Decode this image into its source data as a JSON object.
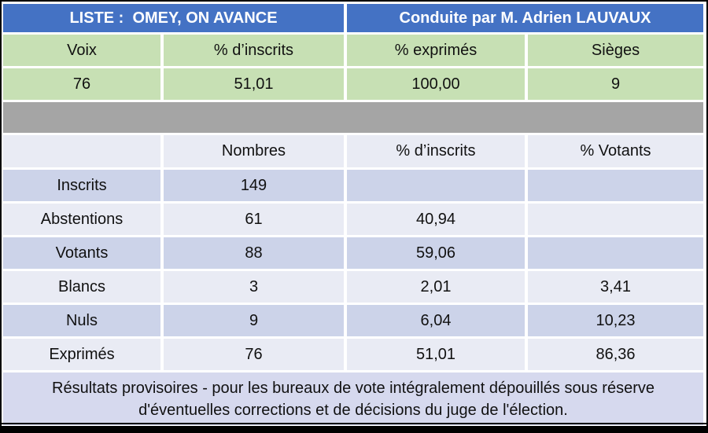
{
  "chart_data": [
    {
      "type": "table",
      "name": "list-result-summary",
      "header_left": "LISTE :  OMEY, ON AVANCE",
      "header_right": "Conduite par M. Adrien LAUVAUX",
      "columns": [
        "Voix",
        "% d’inscrits",
        "% exprimés",
        "Sièges"
      ],
      "values": [
        "76",
        "51,01",
        "100,00",
        "9"
      ]
    },
    {
      "type": "table",
      "name": "participation-details",
      "columns": [
        "",
        "Nombres",
        "% d’inscrits",
        "% Votants"
      ],
      "rows": [
        [
          "Inscrits",
          "149",
          "",
          ""
        ],
        [
          "Abstentions",
          "61",
          "40,94",
          ""
        ],
        [
          "Votants",
          "88",
          "59,06",
          ""
        ],
        [
          "Blancs",
          "3",
          "2,01",
          "3,41"
        ],
        [
          "Nuls",
          "9",
          "6,04",
          "10,23"
        ],
        [
          "Exprimés",
          "76",
          "51,01",
          "86,36"
        ]
      ]
    }
  ],
  "footer": {
    "note": "Résultats provisoires - pour les bureaux de vote intégralement dépouillés sous réserve d'éventuelles corrections et de décisions du juge de l'élection."
  },
  "colors": {
    "header_blue": "#4472C4",
    "header_text": "#FFFFFF",
    "green_band": "#C7E0B4",
    "gray_band": "#A5A5A5",
    "row_dark": "#CCD3E9",
    "row_light": "#E9EBF4",
    "footer_bg": "#D6D9EE",
    "frame_black": "#000000"
  }
}
